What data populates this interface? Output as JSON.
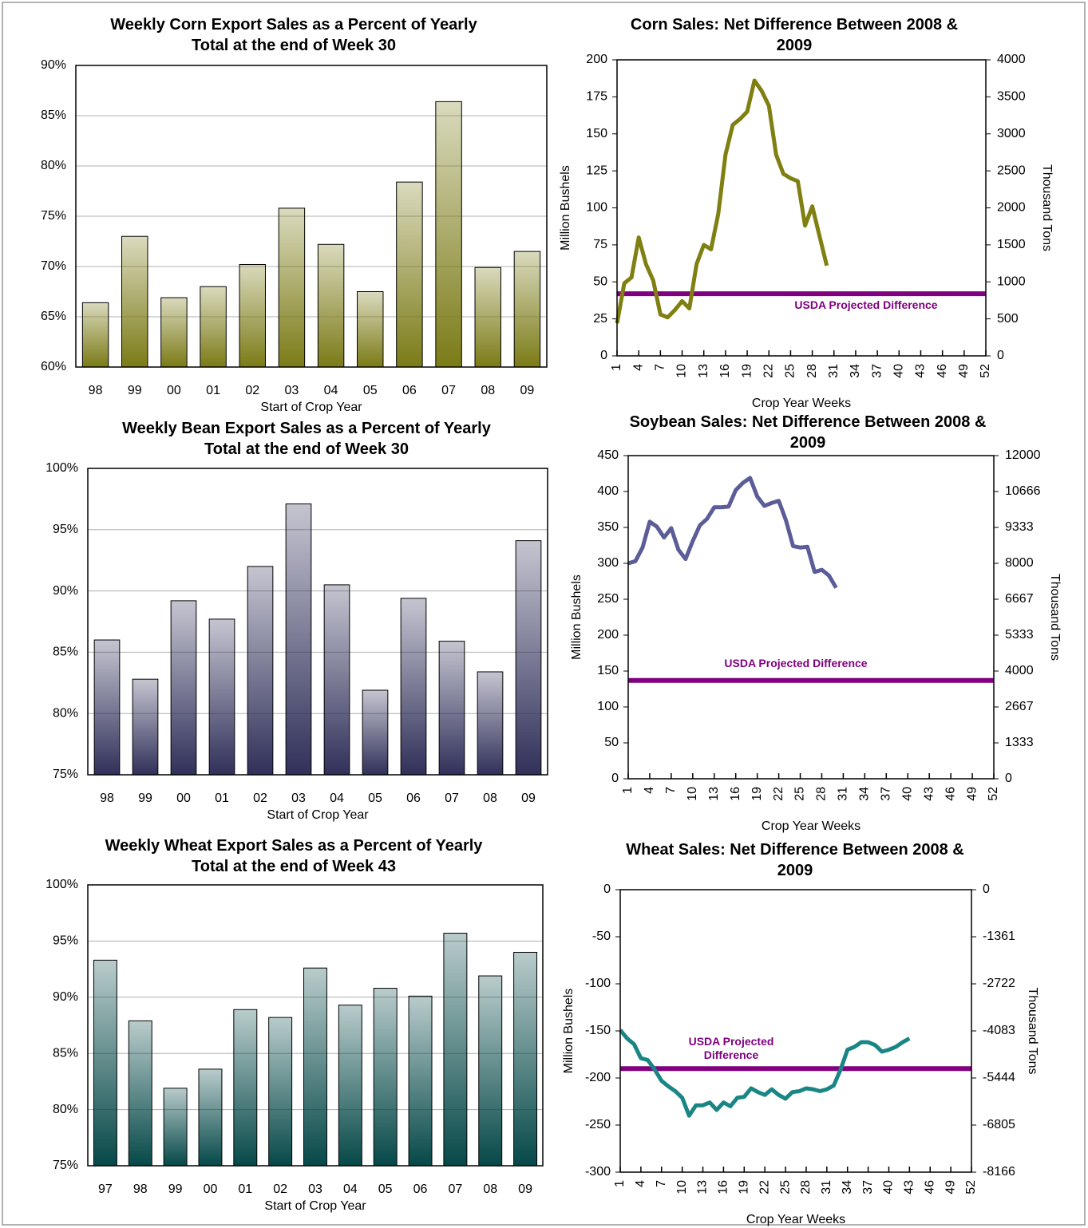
{
  "chart_data": [
    {
      "type": "bar",
      "title": "Weekly Corn Export Sales as a Percent of Yearly Total at the end of Week 30",
      "categories": [
        "98",
        "99",
        "00",
        "01",
        "02",
        "03",
        "04",
        "05",
        "06",
        "07",
        "08",
        "09"
      ],
      "values": [
        66.4,
        73.0,
        66.9,
        68.0,
        70.2,
        75.8,
        72.2,
        67.5,
        78.4,
        86.4,
        69.9,
        71.5
      ],
      "color": "#7b7b17",
      "xlabel": "Start of Crop Year",
      "ylim": [
        60,
        90
      ],
      "yticks": [
        {
          "value": 60,
          "label": "60%"
        },
        {
          "value": 65,
          "label": "65%"
        },
        {
          "value": 70,
          "label": "70%"
        },
        {
          "value": 75,
          "label": "75%"
        },
        {
          "value": 80,
          "label": "80%"
        },
        {
          "value": 85,
          "label": "85%"
        },
        {
          "value": 90,
          "label": "90%"
        }
      ],
      "grid": true
    },
    {
      "type": "line",
      "title": "Corn Sales: Net Difference Between 2008 & 2009",
      "x": [
        1,
        2,
        3,
        4,
        5,
        6,
        7,
        8,
        9,
        10,
        11,
        12,
        13,
        14,
        15,
        16,
        17,
        18,
        19,
        20,
        21,
        22,
        23,
        24,
        25,
        26,
        27,
        28,
        29,
        30
      ],
      "series": [
        {
          "color": "#7f7f12",
          "values": [
            22,
            49,
            53,
            80,
            62,
            51,
            28,
            26,
            31,
            37,
            32,
            62,
            75,
            72,
            96,
            136,
            156,
            160,
            165,
            186,
            179,
            169,
            136,
            123,
            120,
            118,
            88,
            101,
            81,
            61
          ]
        }
      ],
      "xlabel": "Crop Year Weeks",
      "ylabel": "Million Bushels",
      "y2label": "Thousand Tons",
      "xlim": [
        1,
        52
      ],
      "xticks": [
        1,
        4,
        7,
        10,
        13,
        16,
        19,
        22,
        25,
        28,
        31,
        34,
        37,
        40,
        43,
        46,
        49,
        52
      ],
      "ylim": [
        0,
        200
      ],
      "yticks": [
        0,
        25,
        50,
        75,
        100,
        125,
        150,
        175,
        200
      ],
      "y2lim": [
        0,
        4000
      ],
      "y2ticks": [
        0,
        500,
        1000,
        1500,
        2000,
        2500,
        3000,
        3500,
        4000
      ],
      "grid": false,
      "reference": {
        "value": 42,
        "label": "USDA Projected Difference",
        "color": "#800080"
      }
    },
    {
      "type": "bar",
      "title": "Weekly Bean Export Sales as a Percent of Yearly Total at the end of Week 30",
      "categories": [
        "98",
        "99",
        "00",
        "01",
        "02",
        "03",
        "04",
        "05",
        "06",
        "07",
        "08",
        "09"
      ],
      "values": [
        86.0,
        82.8,
        89.2,
        87.7,
        92.0,
        97.1,
        90.5,
        81.9,
        89.4,
        85.9,
        83.4,
        94.1
      ],
      "color": "#30305a",
      "xlabel": "Start of Crop Year",
      "ylim": [
        75,
        100
      ],
      "yticks": [
        {
          "value": 75,
          "label": "75%"
        },
        {
          "value": 80,
          "label": "80%"
        },
        {
          "value": 85,
          "label": "85%"
        },
        {
          "value": 90,
          "label": "90%"
        },
        {
          "value": 95,
          "label": "95%"
        },
        {
          "value": 100,
          "label": "100%"
        }
      ],
      "grid": true
    },
    {
      "type": "line",
      "title": "Soybean Sales:  Net Difference Between 2008 & 2009",
      "x": [
        1,
        2,
        3,
        4,
        5,
        6,
        7,
        8,
        9,
        10,
        11,
        12,
        13,
        14,
        15,
        16,
        17,
        18,
        19,
        20,
        21,
        22,
        23,
        24,
        25,
        26,
        27,
        28,
        29,
        30
      ],
      "series": [
        {
          "color": "#5c5c99",
          "values": [
            300,
            303,
            322,
            358,
            351,
            336,
            349,
            319,
            306,
            331,
            353,
            362,
            378,
            378,
            379,
            402,
            412,
            419,
            393,
            380,
            384,
            387,
            360,
            324,
            322,
            323,
            288,
            291,
            283,
            266
          ]
        }
      ],
      "xlabel": "Crop Year Weeks",
      "ylabel": "Million Bushels",
      "y2label": "Thousand Tons",
      "xlim": [
        1,
        52
      ],
      "xticks": [
        1,
        4,
        7,
        10,
        13,
        16,
        19,
        22,
        25,
        28,
        31,
        34,
        37,
        40,
        43,
        46,
        49,
        52
      ],
      "ylim": [
        0,
        450
      ],
      "yticks": [
        0,
        50,
        100,
        150,
        200,
        250,
        300,
        350,
        400,
        450
      ],
      "y2lim": [
        0,
        12000
      ],
      "y2ticks": [
        0,
        1333,
        2667,
        4000,
        5333,
        6667,
        8000,
        9333,
        10666,
        12000
      ],
      "grid": false,
      "reference": {
        "value": 137,
        "label": "USDA Projected  Difference",
        "color": "#800080"
      }
    },
    {
      "type": "bar",
      "title": "Weekly Wheat Export Sales as a Percent of Yearly Total at the end of Week 43",
      "categories": [
        "97",
        "98",
        "99",
        "00",
        "01",
        "02",
        "03",
        "04",
        "05",
        "06",
        "07",
        "08",
        "09"
      ],
      "values": [
        93.3,
        87.9,
        81.9,
        83.6,
        88.9,
        88.2,
        92.6,
        89.3,
        90.8,
        90.1,
        95.7,
        91.9,
        94.0
      ],
      "color": "#064848",
      "xlabel": "Start of Crop Year",
      "ylim": [
        75,
        100
      ],
      "yticks": [
        {
          "value": 75,
          "label": "75%"
        },
        {
          "value": 80,
          "label": "80%"
        },
        {
          "value": 85,
          "label": "85%"
        },
        {
          "value": 90,
          "label": "90%"
        },
        {
          "value": 95,
          "label": "95%"
        },
        {
          "value": 100,
          "label": "100%"
        }
      ],
      "grid": true
    },
    {
      "type": "line",
      "title": "Wheat Sales:  Net Difference Between 2008 & 2009",
      "x": [
        1,
        2,
        3,
        4,
        5,
        6,
        7,
        8,
        9,
        10,
        11,
        12,
        13,
        14,
        15,
        16,
        17,
        18,
        19,
        20,
        21,
        22,
        23,
        24,
        25,
        26,
        27,
        28,
        29,
        30,
        31,
        32,
        33,
        34,
        35,
        36,
        37,
        38,
        39,
        40,
        41,
        42,
        43
      ],
      "series": [
        {
          "color": "#1a8585",
          "values": [
            -149,
            -158,
            -164,
            -179,
            -181,
            -191,
            -203,
            -209,
            -214,
            -221,
            -240,
            -229,
            -229,
            -226,
            -234,
            -226,
            -230,
            -221,
            -220,
            -211,
            -215,
            -218,
            -212,
            -218,
            -222,
            -215,
            -214,
            -211,
            -212,
            -214,
            -212,
            -208,
            -191,
            -170,
            -167,
            -162,
            -162,
            -165,
            -172,
            -170,
            -167,
            -162,
            -158
          ]
        }
      ],
      "xlabel": "Crop Year Weeks",
      "ylabel": "Million Bushels",
      "y2label": "Thousand Tons",
      "xlim": [
        1,
        52
      ],
      "xticks": [
        1,
        4,
        7,
        10,
        13,
        16,
        19,
        22,
        25,
        28,
        31,
        34,
        37,
        40,
        43,
        46,
        49,
        52
      ],
      "ylim": [
        -300,
        0
      ],
      "yticks": [
        -300,
        -250,
        -200,
        -150,
        -100,
        -50,
        0
      ],
      "y2lim": [
        -8166,
        0
      ],
      "y2ticks": [
        -8166,
        -6805,
        -5444,
        -4083,
        -2722,
        -1361,
        0
      ],
      "grid": false,
      "reference": {
        "value": -190,
        "label": "USDA Projected Difference",
        "color": "#800080"
      }
    }
  ]
}
